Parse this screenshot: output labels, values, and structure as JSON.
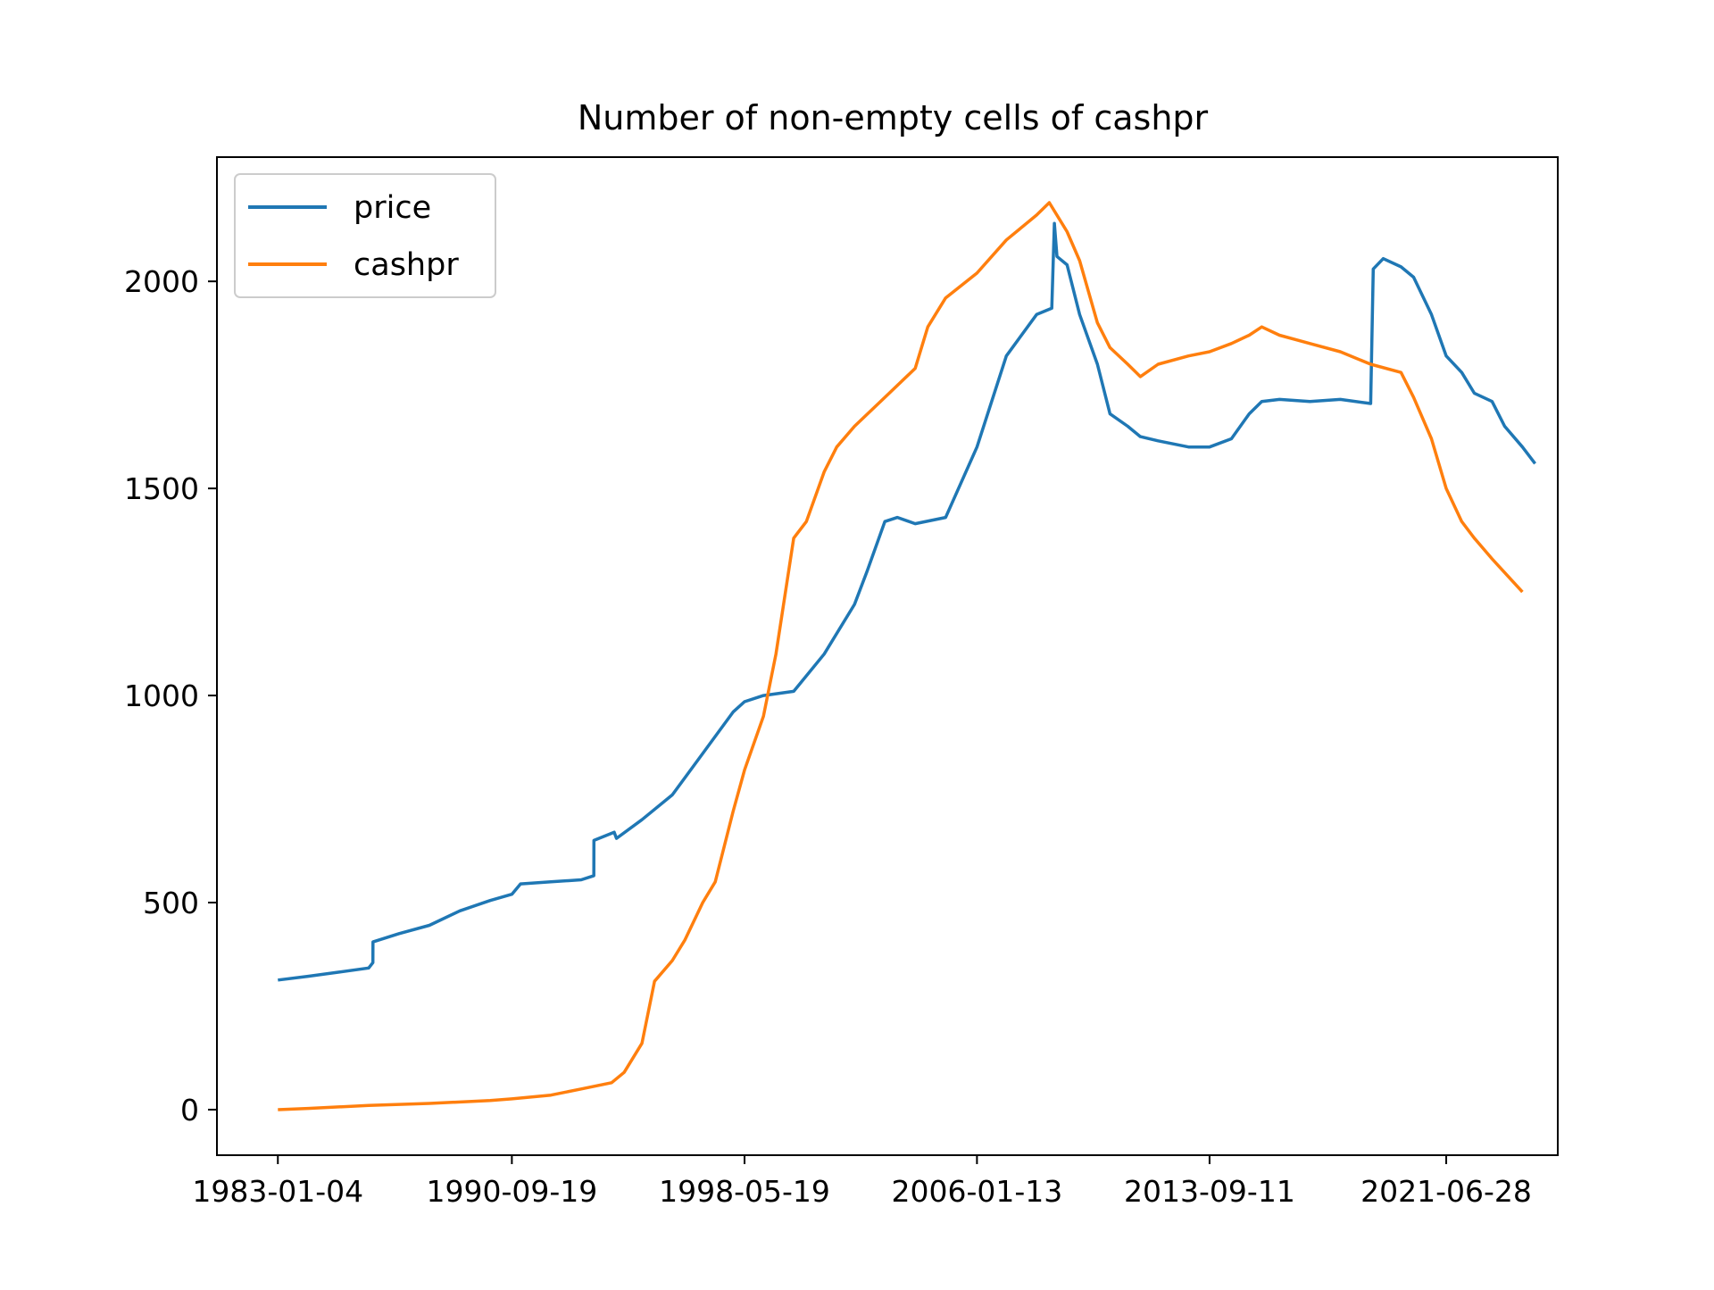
{
  "chart_data": {
    "type": "line",
    "title": "Number of non-empty cells of cashpr",
    "xlabel": "",
    "ylabel": "",
    "x_ticks": [
      "1983-01-04",
      "1990-09-19",
      "1998-05-19",
      "2006-01-13",
      "2013-09-11",
      "2021-06-28"
    ],
    "y_ticks": [
      0,
      500,
      1000,
      1500,
      2000
    ],
    "xlim": [
      "1981-01-01",
      "2025-03-01"
    ],
    "ylim": [
      -110,
      2300
    ],
    "grid": false,
    "legend_position": "top-left",
    "series": [
      {
        "name": "price",
        "color": "#1f77b4",
        "points": [
          [
            "1983-01-04",
            313
          ],
          [
            "1984-01-01",
            322
          ],
          [
            "1985-01-01",
            332
          ],
          [
            "1986-01-01",
            342
          ],
          [
            "1986-02-20",
            355
          ],
          [
            "1986-02-21",
            405
          ],
          [
            "1987-01-01",
            425
          ],
          [
            "1988-01-01",
            445
          ],
          [
            "1989-01-01",
            480
          ],
          [
            "1990-01-01",
            505
          ],
          [
            "1990-09-19",
            520
          ],
          [
            "1991-01-01",
            545
          ],
          [
            "1992-01-01",
            550
          ],
          [
            "1993-01-01",
            555
          ],
          [
            "1993-06-01",
            565
          ],
          [
            "1993-06-02",
            650
          ],
          [
            "1994-02-01",
            670
          ],
          [
            "1994-03-01",
            655
          ],
          [
            "1995-01-01",
            700
          ],
          [
            "1996-01-01",
            760
          ],
          [
            "1997-01-01",
            860
          ],
          [
            "1998-01-01",
            960
          ],
          [
            "1998-05-19",
            985
          ],
          [
            "1999-01-01",
            1000
          ],
          [
            "2000-01-01",
            1010
          ],
          [
            "2001-01-01",
            1100
          ],
          [
            "2002-01-01",
            1220
          ],
          [
            "2002-06-01",
            1300
          ],
          [
            "2003-01-01",
            1420
          ],
          [
            "2003-06-01",
            1430
          ],
          [
            "2004-01-01",
            1415
          ],
          [
            "2005-01-01",
            1430
          ],
          [
            "2006-01-13",
            1600
          ],
          [
            "2007-01-01",
            1820
          ],
          [
            "2008-01-01",
            1920
          ],
          [
            "2008-07-01",
            1935
          ],
          [
            "2008-08-01",
            2140
          ],
          [
            "2008-09-01",
            2060
          ],
          [
            "2009-01-01",
            2040
          ],
          [
            "2009-06-01",
            1920
          ],
          [
            "2010-01-01",
            1800
          ],
          [
            "2010-06-01",
            1680
          ],
          [
            "2011-01-01",
            1650
          ],
          [
            "2011-06-01",
            1625
          ],
          [
            "2012-01-01",
            1615
          ],
          [
            "2013-01-01",
            1600
          ],
          [
            "2013-09-11",
            1600
          ],
          [
            "2014-06-01",
            1620
          ],
          [
            "2015-01-01",
            1680
          ],
          [
            "2015-06-01",
            1710
          ],
          [
            "2016-01-01",
            1715
          ],
          [
            "2017-01-01",
            1710
          ],
          [
            "2018-01-01",
            1715
          ],
          [
            "2019-01-01",
            1705
          ],
          [
            "2019-02-01",
            2030
          ],
          [
            "2019-06-01",
            2055
          ],
          [
            "2020-01-01",
            2035
          ],
          [
            "2020-06-01",
            2010
          ],
          [
            "2021-01-01",
            1920
          ],
          [
            "2021-06-28",
            1820
          ],
          [
            "2022-01-01",
            1780
          ],
          [
            "2022-06-01",
            1730
          ],
          [
            "2023-01-01",
            1710
          ],
          [
            "2023-06-01",
            1650
          ],
          [
            "2024-01-01",
            1600
          ],
          [
            "2024-06-01",
            1560
          ]
        ]
      },
      {
        "name": "cashpr",
        "color": "#ff7f0e",
        "points": [
          [
            "1983-01-04",
            0
          ],
          [
            "1984-01-01",
            3
          ],
          [
            "1986-01-01",
            10
          ],
          [
            "1988-01-01",
            15
          ],
          [
            "1990-01-01",
            22
          ],
          [
            "1990-09-19",
            26
          ],
          [
            "1992-01-01",
            35
          ],
          [
            "1993-01-01",
            50
          ],
          [
            "1994-01-01",
            65
          ],
          [
            "1994-06-01",
            90
          ],
          [
            "1995-01-01",
            160
          ],
          [
            "1995-06-01",
            310
          ],
          [
            "1996-01-01",
            360
          ],
          [
            "1996-06-01",
            410
          ],
          [
            "1997-01-01",
            500
          ],
          [
            "1997-06-01",
            550
          ],
          [
            "1998-01-01",
            720
          ],
          [
            "1998-05-19",
            820
          ],
          [
            "1999-01-01",
            950
          ],
          [
            "1999-06-01",
            1100
          ],
          [
            "2000-01-01",
            1380
          ],
          [
            "2000-06-01",
            1420
          ],
          [
            "2001-01-01",
            1540
          ],
          [
            "2001-06-01",
            1600
          ],
          [
            "2002-01-01",
            1650
          ],
          [
            "2003-01-01",
            1720
          ],
          [
            "2004-01-01",
            1790
          ],
          [
            "2004-06-01",
            1890
          ],
          [
            "2005-01-01",
            1960
          ],
          [
            "2006-01-13",
            2020
          ],
          [
            "2007-01-01",
            2100
          ],
          [
            "2008-01-01",
            2160
          ],
          [
            "2008-06-01",
            2190
          ],
          [
            "2009-01-01",
            2120
          ],
          [
            "2009-06-01",
            2050
          ],
          [
            "2010-01-01",
            1900
          ],
          [
            "2010-06-01",
            1840
          ],
          [
            "2011-01-01",
            1800
          ],
          [
            "2011-06-01",
            1770
          ],
          [
            "2012-01-01",
            1800
          ],
          [
            "2013-01-01",
            1820
          ],
          [
            "2013-09-11",
            1830
          ],
          [
            "2014-06-01",
            1850
          ],
          [
            "2015-01-01",
            1870
          ],
          [
            "2015-06-01",
            1890
          ],
          [
            "2016-01-01",
            1870
          ],
          [
            "2017-01-01",
            1850
          ],
          [
            "2018-01-01",
            1830
          ],
          [
            "2019-01-01",
            1800
          ],
          [
            "2020-01-01",
            1780
          ],
          [
            "2020-06-01",
            1720
          ],
          [
            "2021-01-01",
            1620
          ],
          [
            "2021-06-28",
            1500
          ],
          [
            "2022-01-01",
            1420
          ],
          [
            "2022-06-01",
            1380
          ],
          [
            "2023-01-01",
            1330
          ],
          [
            "2024-01-01",
            1250
          ]
        ]
      }
    ]
  }
}
